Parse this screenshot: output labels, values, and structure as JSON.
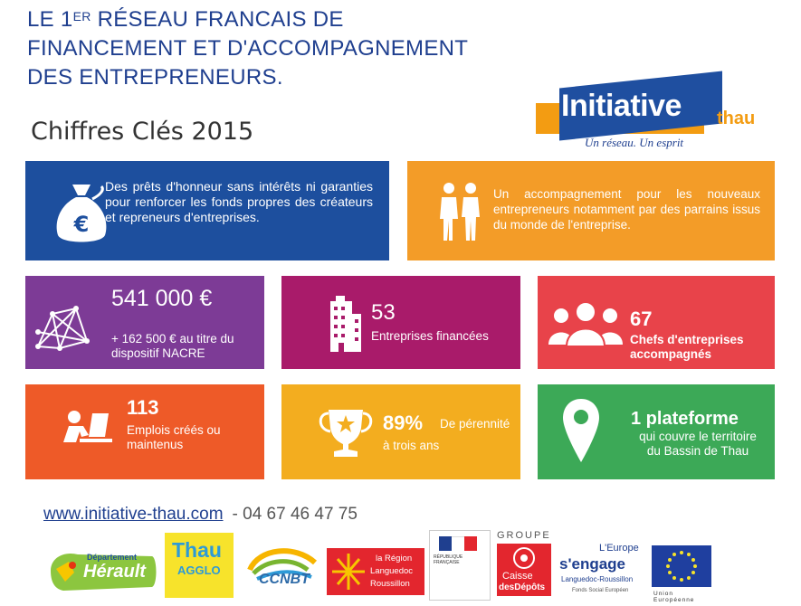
{
  "header": {
    "line1_pre": "LE 1",
    "line1_sup": "ER",
    "line1_post": " RÉSEAU FRANCAIS DE",
    "line2": "FINANCEMENT ET D'ACCOMPAGNEMENT",
    "line3": "DES ENTREPRENEURS."
  },
  "subtitle": "Chiffres Clés 2015",
  "logo": {
    "word": "Initiative",
    "suffix": "thau",
    "tagline": "Un réseau. Un esprit"
  },
  "tiles": {
    "prets": {
      "text": "Des prêts d'honneur sans intérêts ni garanties pour renforcer les fonds propres des créateurs et repreneurs d'entreprises.",
      "icon": "money-bag-icon",
      "color": "#1d4f9e"
    },
    "accompagnement": {
      "text": "Un accompagnement pour les nouveaux entrepreneurs notamment par des parrains issus du monde de l'entreprise.",
      "icon": "people-pair-icon",
      "color": "#f39c28"
    },
    "montant": {
      "value": "541 000 €",
      "note": "+  162 500 € au titre du dispositif NACRE",
      "icon": "network-icon",
      "color": "#7d3b96"
    },
    "entreprises": {
      "value": "53",
      "label": "Entreprises financées",
      "icon": "building-icon",
      "color": "#a91b6a"
    },
    "chefs": {
      "value": "67",
      "label": "Chefs d'entreprises accompagnés",
      "icon": "group-icon",
      "color": "#e8434a"
    },
    "emplois": {
      "value": "113",
      "label": "Emplois créés ou maintenus",
      "icon": "worker-desk-icon",
      "color": "#ee5a28"
    },
    "perennite": {
      "value": "89%",
      "label_inline": "De pérennité",
      "label": "à trois ans",
      "icon": "trophy-icon",
      "color": "#f3ad1f"
    },
    "plateforme": {
      "value": "1 plateforme",
      "label": "qui couvre le territoire du Bassin de Thau",
      "icon": "map-pin-icon",
      "color": "#3ca957"
    }
  },
  "contact": {
    "website": "www.initiative-thau.com",
    "phone": "- 04 67 46 47 75"
  },
  "partners": {
    "herault": "Hérault",
    "herault_top": "Département",
    "thau": "Thau",
    "agglo": "AGGLO",
    "ccnbt": "CCNBT",
    "region_line1": "la Région",
    "region_line2": "Languedoc",
    "region_line3": "Roussillon",
    "rf": "RÉPUBLIQUE FRANÇAISE",
    "groupe": "GROUPE",
    "caisse_line1": "Caisse",
    "caisse_line2": "desDépôts",
    "europe_top": "L'Europe",
    "europe_main": "s'engage",
    "europe_sub": "Languedoc-Roussillon",
    "europe_fse": "Fonds Social Européen",
    "ue": "Union Européenne"
  }
}
